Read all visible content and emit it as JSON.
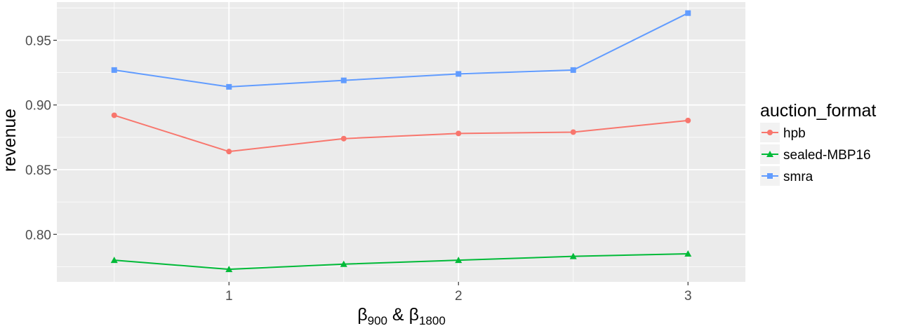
{
  "chart_data": {
    "type": "line",
    "title": "",
    "xlabel": {
      "base1": "β",
      "sub1": "900",
      "mid": " & ",
      "base2": "β",
      "sub2": "1800"
    },
    "ylabel": "revenue",
    "xlim": [
      0.25,
      3.25
    ],
    "ylim": [
      0.7633,
      0.9795
    ],
    "x_ticks": [
      1,
      2,
      3
    ],
    "x_tick_labels": [
      "1",
      "2",
      "3"
    ],
    "y_ticks": [
      0.8,
      0.85,
      0.9,
      0.95
    ],
    "y_tick_labels": [
      "0.80",
      "0.85",
      "0.90",
      "0.95"
    ],
    "grid": true,
    "legend": {
      "title": "auction_format",
      "position": "right"
    },
    "x": [
      0.5,
      1,
      1.5,
      2,
      2.5,
      3
    ],
    "series": [
      {
        "name": "hpb",
        "color": "#F8766D",
        "marker": "circle",
        "values": [
          0.892,
          0.864,
          0.874,
          0.878,
          0.879,
          0.888
        ]
      },
      {
        "name": "sealed-MBP16",
        "color": "#00BA38",
        "marker": "triangle",
        "values": [
          0.78,
          0.773,
          0.777,
          0.78,
          0.783,
          0.785
        ]
      },
      {
        "name": "smra",
        "color": "#619CFF",
        "marker": "square",
        "values": [
          0.927,
          0.914,
          0.919,
          0.924,
          0.927,
          0.971
        ]
      }
    ]
  }
}
